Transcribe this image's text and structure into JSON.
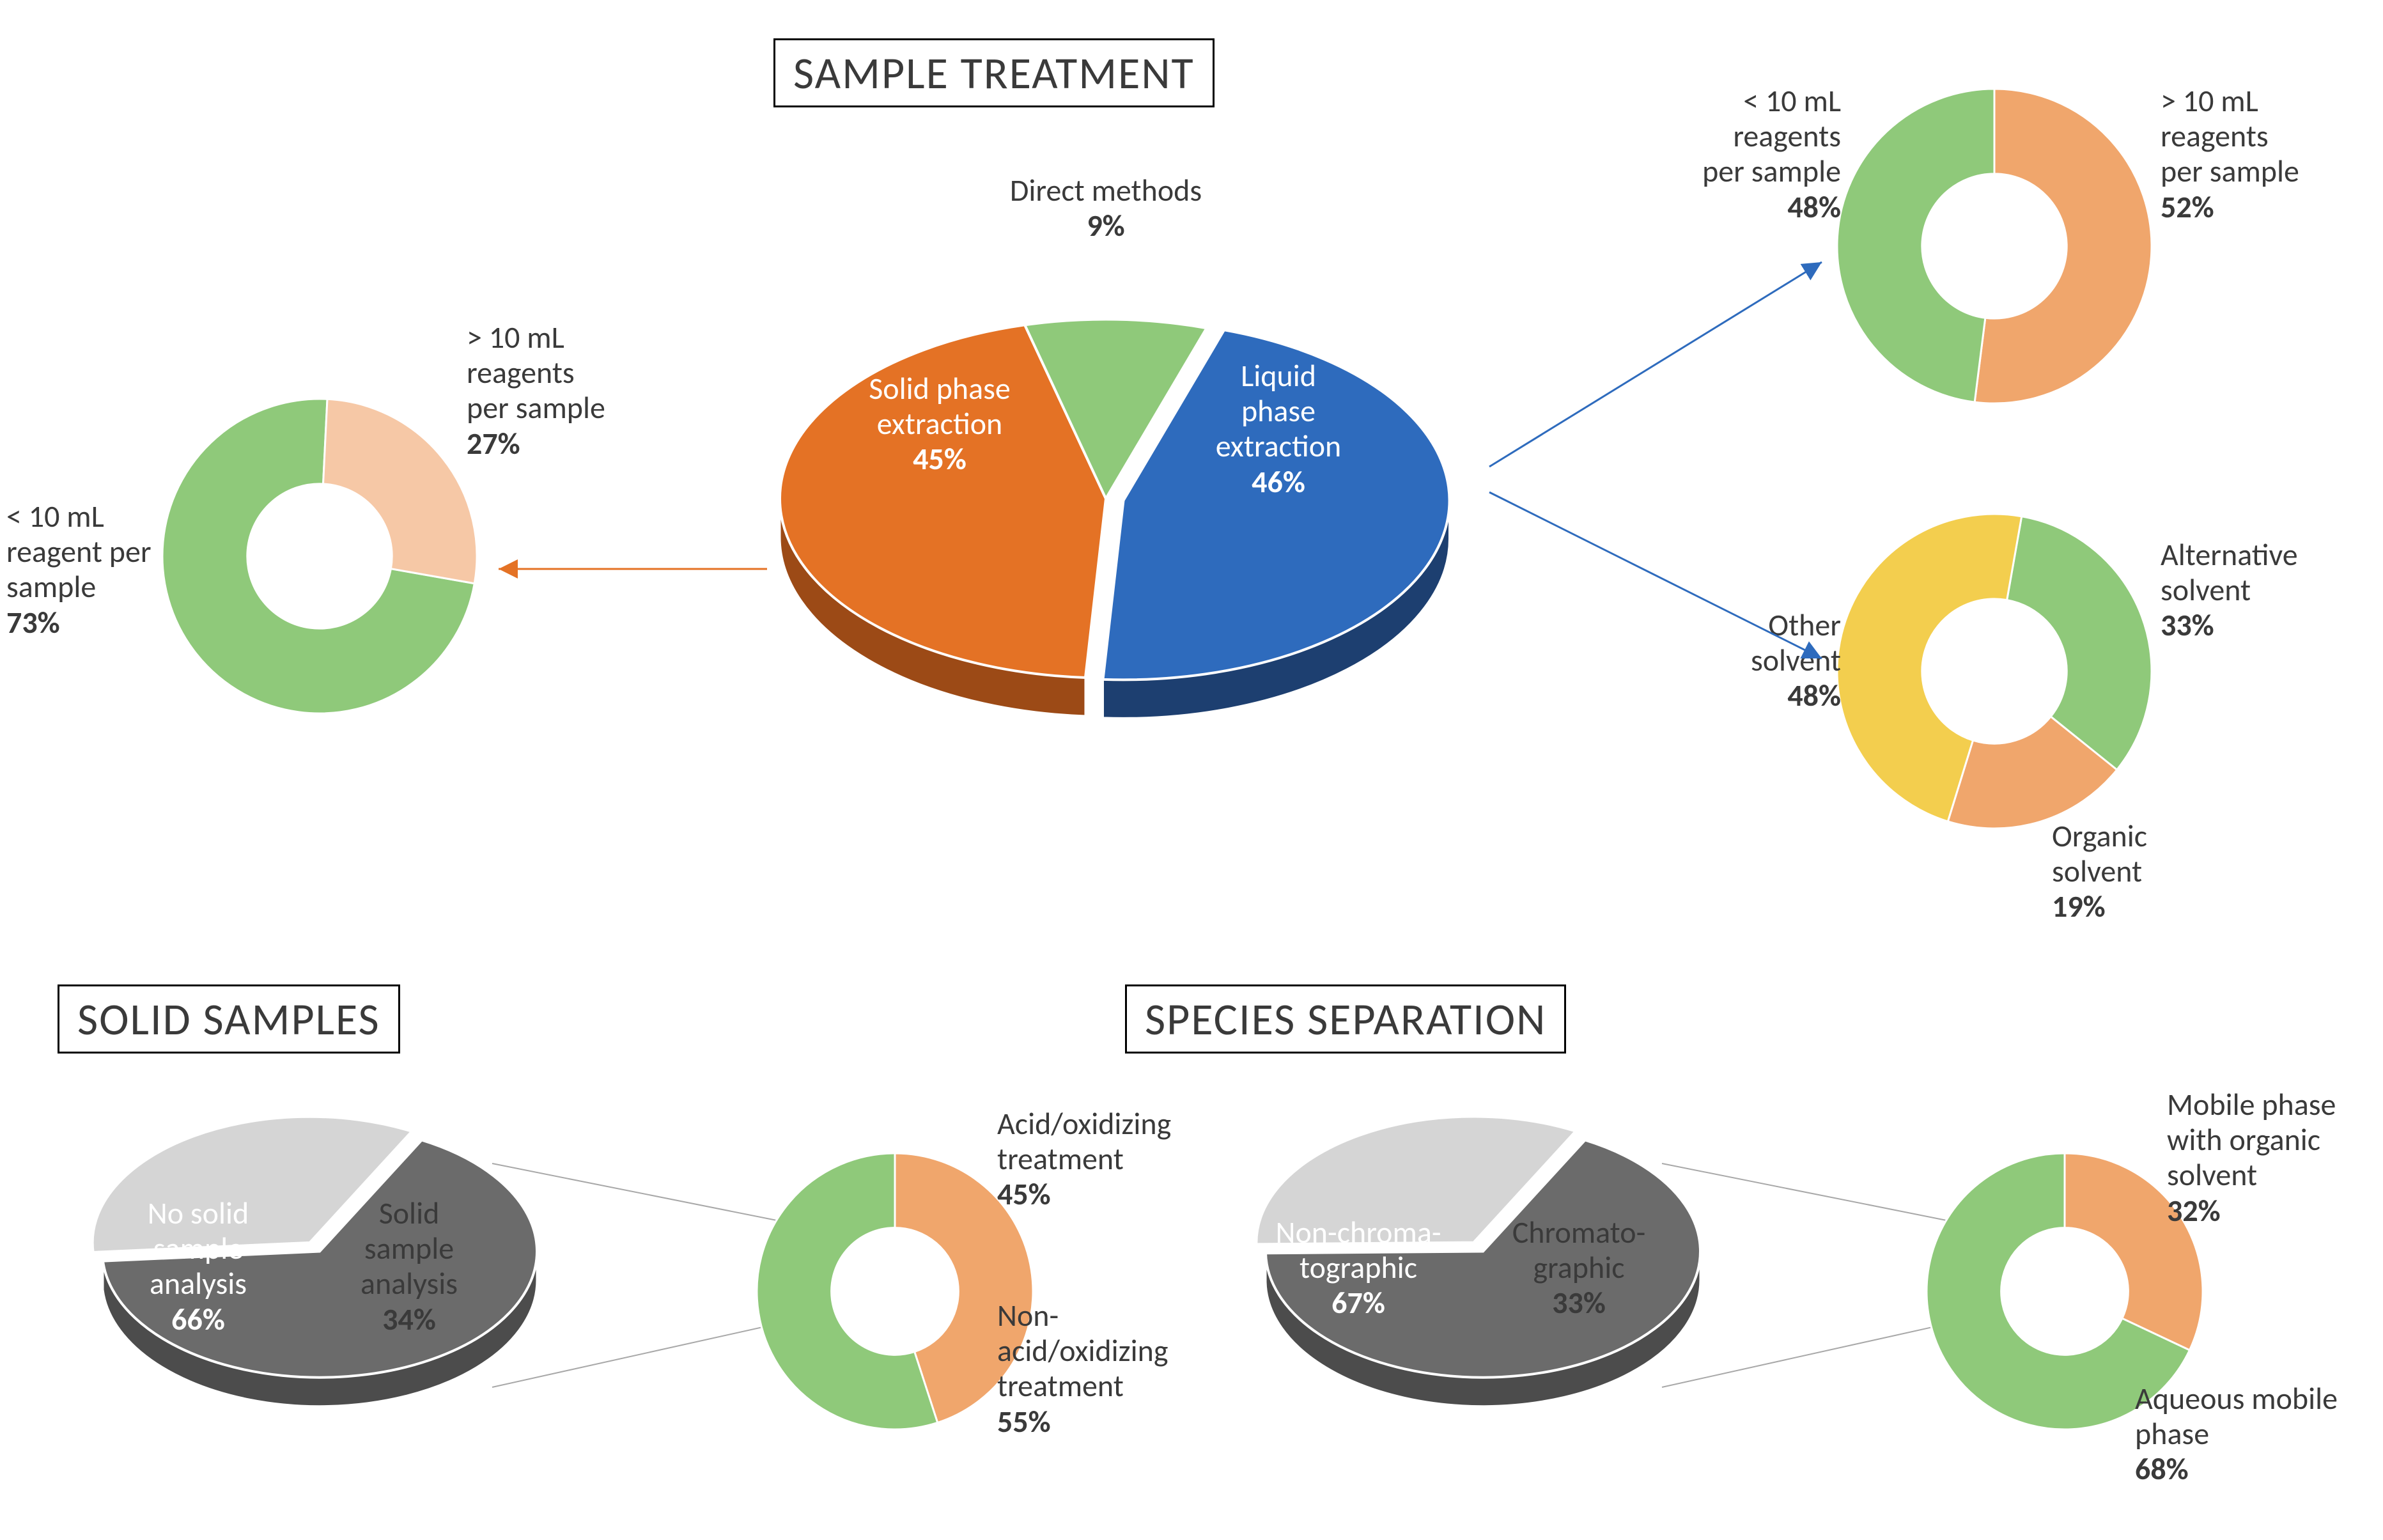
{
  "titles": {
    "sample_treatment": "SAMPLE TREATMENT",
    "solid_samples": "SOLID SAMPLES",
    "species_separation": "SPECIES SEPARATION"
  },
  "main_pie": {
    "type": "pie-3d",
    "slices": [
      {
        "label": "Liquid\nphase\nextraction",
        "pct": "46%",
        "value": 46,
        "color": "#2e6bbd",
        "side": "#1d3f70",
        "exploded": true
      },
      {
        "label": "Solid phase\nextraction",
        "pct": "45%",
        "value": 45,
        "color": "#e47225",
        "side": "#9c4a16",
        "exploded": false
      },
      {
        "label": "Direct methods",
        "pct": "9%",
        "value": 9,
        "color": "#8fc97a",
        "side": "#335c2a",
        "exploded": false
      }
    ],
    "outline": "#ffffff",
    "depth": 60,
    "tilt": 0.55
  },
  "donut_solid_phase": {
    "type": "donut",
    "slices": [
      {
        "label": "< 10 mL\nreagent per\nsample",
        "pct": "73%",
        "value": 73,
        "color": "#8fc97a"
      },
      {
        "label": "> 10 mL\nreagents\nper sample",
        "pct": "27%",
        "value": 27,
        "color": "#f6c8a6"
      }
    ],
    "inner_ratio": 0.46
  },
  "donut_liquid_reagents": {
    "type": "donut",
    "slices": [
      {
        "label": "> 10 mL\nreagents\nper sample",
        "pct": "52%",
        "value": 52,
        "color": "#f0a66c"
      },
      {
        "label": "< 10 mL\nreagents\nper sample",
        "pct": "48%",
        "value": 48,
        "color": "#8fc97a"
      }
    ],
    "inner_ratio": 0.46
  },
  "donut_liquid_solvent": {
    "type": "donut",
    "slices": [
      {
        "label": "Alternative\nsolvent",
        "pct": "33%",
        "value": 33,
        "color": "#8fc97a"
      },
      {
        "label": "Organic\nsolvent",
        "pct": "19%",
        "value": 19,
        "color": "#f0a66c"
      },
      {
        "label": "Other\nsolvent",
        "pct": "48%",
        "value": 48,
        "color": "#f3ce4e"
      }
    ],
    "inner_ratio": 0.46
  },
  "solid_samples_pie": {
    "type": "pie-3d",
    "slices": [
      {
        "label": "No solid\nsample\nanalysis",
        "pct": "66%",
        "value": 66,
        "color": "#6b6b6b",
        "side": "#4c4c4c",
        "exploded": false
      },
      {
        "label": "Solid\nsample\nanalysis",
        "pct": "34%",
        "value": 34,
        "color": "#d5d5d5",
        "side": "#a8a8a8",
        "exploded": true
      }
    ],
    "outline": "#ffffff",
    "depth": 45,
    "tilt": 0.58
  },
  "donut_solid_treatment": {
    "type": "donut",
    "slices": [
      {
        "label": "Acid/oxidizing\ntreatment",
        "pct": "45%",
        "value": 45,
        "color": "#f0a66c"
      },
      {
        "label": "Non-\nacid/oxidizing\ntreatment",
        "pct": "55%",
        "value": 55,
        "color": "#8fc97a"
      }
    ],
    "inner_ratio": 0.46
  },
  "species_pie": {
    "type": "pie-3d",
    "slices": [
      {
        "label": "Non-chroma-\ntographic",
        "pct": "67%",
        "value": 67,
        "color": "#6b6b6b",
        "side": "#4c4c4c",
        "exploded": false
      },
      {
        "label": "Chromato-\ngraphic",
        "pct": "33%",
        "value": 33,
        "color": "#d5d5d5",
        "side": "#a8a8a8",
        "exploded": true
      }
    ],
    "outline": "#ffffff",
    "depth": 45,
    "tilt": 0.58
  },
  "donut_mobile_phase": {
    "type": "donut",
    "slices": [
      {
        "label": "Mobile phase\nwith organic\nsolvent",
        "pct": "32%",
        "value": 32,
        "color": "#f0a66c"
      },
      {
        "label": "Aqueous mobile\nphase",
        "pct": "68%",
        "value": 68,
        "color": "#8fc97a"
      }
    ],
    "inner_ratio": 0.46
  },
  "arrows": {
    "to_solid_donut": {
      "color": "#e47225"
    },
    "to_liquid_donuts": {
      "color": "#2e6bbd"
    },
    "wedge_lines": {
      "color": "#a8a8a8"
    }
  },
  "font": {
    "label_size": 48,
    "title_size": 70
  }
}
